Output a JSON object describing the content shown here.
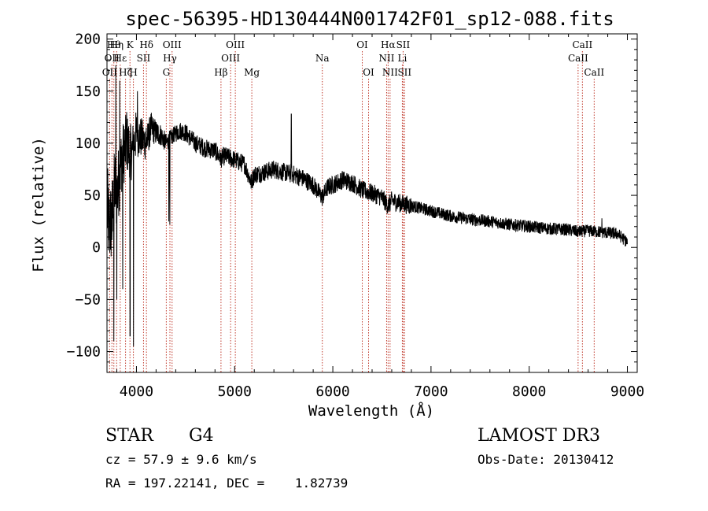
{
  "chart_data": {
    "type": "line",
    "title": "spec-56395-HD130444N001742F01_sp12-088.fits",
    "xlabel": "Wavelength (Å)",
    "ylabel": "Flux (relative)",
    "xlim": [
      3700,
      9100
    ],
    "ylim": [
      -120,
      205
    ],
    "xticks": [
      4000,
      5000,
      6000,
      7000,
      8000,
      9000
    ],
    "yticks": [
      -100,
      -50,
      0,
      50,
      100,
      150,
      200
    ],
    "series": [
      {
        "name": "spectrum",
        "anchors": [
          [
            3700,
            40
          ],
          [
            3720,
            20
          ],
          [
            3750,
            25
          ],
          [
            3780,
            60
          ],
          [
            3800,
            50
          ],
          [
            3850,
            85
          ],
          [
            3900,
            100
          ],
          [
            3950,
            90
          ],
          [
            4000,
            110
          ],
          [
            4050,
            105
          ],
          [
            4100,
            100
          ],
          [
            4150,
            115
          ],
          [
            4200,
            110
          ],
          [
            4250,
            108
          ],
          [
            4300,
            100
          ],
          [
            4350,
            105
          ],
          [
            4400,
            110
          ],
          [
            4450,
            112
          ],
          [
            4500,
            110
          ],
          [
            4600,
            100
          ],
          [
            4700,
            95
          ],
          [
            4800,
            93
          ],
          [
            4860,
            85
          ],
          [
            4900,
            88
          ],
          [
            5000,
            84
          ],
          [
            5100,
            80
          ],
          [
            5170,
            62
          ],
          [
            5200,
            70
          ],
          [
            5300,
            72
          ],
          [
            5400,
            75
          ],
          [
            5500,
            72
          ],
          [
            5600,
            70
          ],
          [
            5700,
            66
          ],
          [
            5800,
            60
          ],
          [
            5893,
            48
          ],
          [
            5950,
            58
          ],
          [
            6000,
            60
          ],
          [
            6100,
            65
          ],
          [
            6200,
            62
          ],
          [
            6300,
            55
          ],
          [
            6400,
            52
          ],
          [
            6500,
            48
          ],
          [
            6563,
            40
          ],
          [
            6600,
            45
          ],
          [
            6700,
            42
          ],
          [
            6800,
            40
          ],
          [
            7000,
            35
          ],
          [
            7200,
            30
          ],
          [
            7400,
            27
          ],
          [
            7600,
            25
          ],
          [
            7800,
            22
          ],
          [
            8000,
            20
          ],
          [
            8200,
            18
          ],
          [
            8400,
            17
          ],
          [
            8500,
            15
          ],
          [
            8600,
            16
          ],
          [
            8700,
            15
          ],
          [
            8800,
            14
          ],
          [
            8900,
            13
          ],
          [
            9000,
            5
          ]
        ],
        "noisy_region": [
          3700,
          4400
        ],
        "noise_amplitude_blue": 45,
        "noise_amplitude_red": 3,
        "spikes": [
          [
            3770,
            -90
          ],
          [
            3790,
            175
          ],
          [
            3800,
            -50
          ],
          [
            3830,
            160
          ],
          [
            3860,
            -40
          ],
          [
            3900,
            130
          ],
          [
            3935,
            -85
          ],
          [
            3970,
            -95
          ],
          [
            4010,
            150
          ],
          [
            4100,
            115
          ],
          [
            4330,
            25
          ],
          [
            4340,
            22
          ],
          [
            5577,
            128
          ],
          [
            8740,
            28
          ]
        ]
      }
    ],
    "line_markers": [
      {
        "wavelength": 3727,
        "label": "OII",
        "row": 3
      },
      {
        "wavelength": 3750,
        "label": "OII",
        "row": 2
      },
      {
        "wavelength": 3770,
        "label": "Hθ",
        "row": 1
      },
      {
        "wavelength": 3798,
        "label": "Hη",
        "row": 1
      },
      {
        "wavelength": 3835,
        "label": "Hε",
        "row": 2
      },
      {
        "wavelength": 3889,
        "label": "Hζ",
        "row": 3
      },
      {
        "wavelength": 3934,
        "label": "K",
        "row": 1
      },
      {
        "wavelength": 3969,
        "label": "H",
        "row": 3
      },
      {
        "wavelength": 4072,
        "label": "SII",
        "row": 2
      },
      {
        "wavelength": 4102,
        "label": "Hδ",
        "row": 1
      },
      {
        "wavelength": 4304,
        "label": "G",
        "row": 3
      },
      {
        "wavelength": 4341,
        "label": "Hγ",
        "row": 2
      },
      {
        "wavelength": 4363,
        "label": "OIII",
        "row": 1
      },
      {
        "wavelength": 4861,
        "label": "Hβ",
        "row": 3
      },
      {
        "wavelength": 4959,
        "label": "OIII",
        "row": 2
      },
      {
        "wavelength": 5007,
        "label": "OIII",
        "row": 1
      },
      {
        "wavelength": 5175,
        "label": "Mg",
        "row": 3
      },
      {
        "wavelength": 5893,
        "label": "Na",
        "row": 2
      },
      {
        "wavelength": 6300,
        "label": "OI",
        "row": 1
      },
      {
        "wavelength": 6364,
        "label": "OI",
        "row": 3
      },
      {
        "wavelength": 6548,
        "label": "NII",
        "row": 2
      },
      {
        "wavelength": 6563,
        "label": "Hα",
        "row": 1
      },
      {
        "wavelength": 6583,
        "label": "NII",
        "row": 3
      },
      {
        "wavelength": 6708,
        "label": "Li",
        "row": 2
      },
      {
        "wavelength": 6716,
        "label": "SII",
        "row": 1
      },
      {
        "wavelength": 6731,
        "label": "SII",
        "row": 3
      },
      {
        "wavelength": 8498,
        "label": "CaII",
        "row": 2
      },
      {
        "wavelength": 8542,
        "label": "CaII",
        "row": 1
      },
      {
        "wavelength": 8662,
        "label": "CaII",
        "row": 3
      }
    ]
  },
  "info": {
    "class": "STAR",
    "subclass": "G4",
    "survey": "LAMOST DR3",
    "redshift": "cz = 57.9 ± 9.6 km/s",
    "obs_date": "Obs-Date: 20130412",
    "coords": "RA = 197.22141, DEC =    1.82739"
  },
  "colors": {
    "marker": "#c0392b",
    "spectrum": "#000000"
  }
}
